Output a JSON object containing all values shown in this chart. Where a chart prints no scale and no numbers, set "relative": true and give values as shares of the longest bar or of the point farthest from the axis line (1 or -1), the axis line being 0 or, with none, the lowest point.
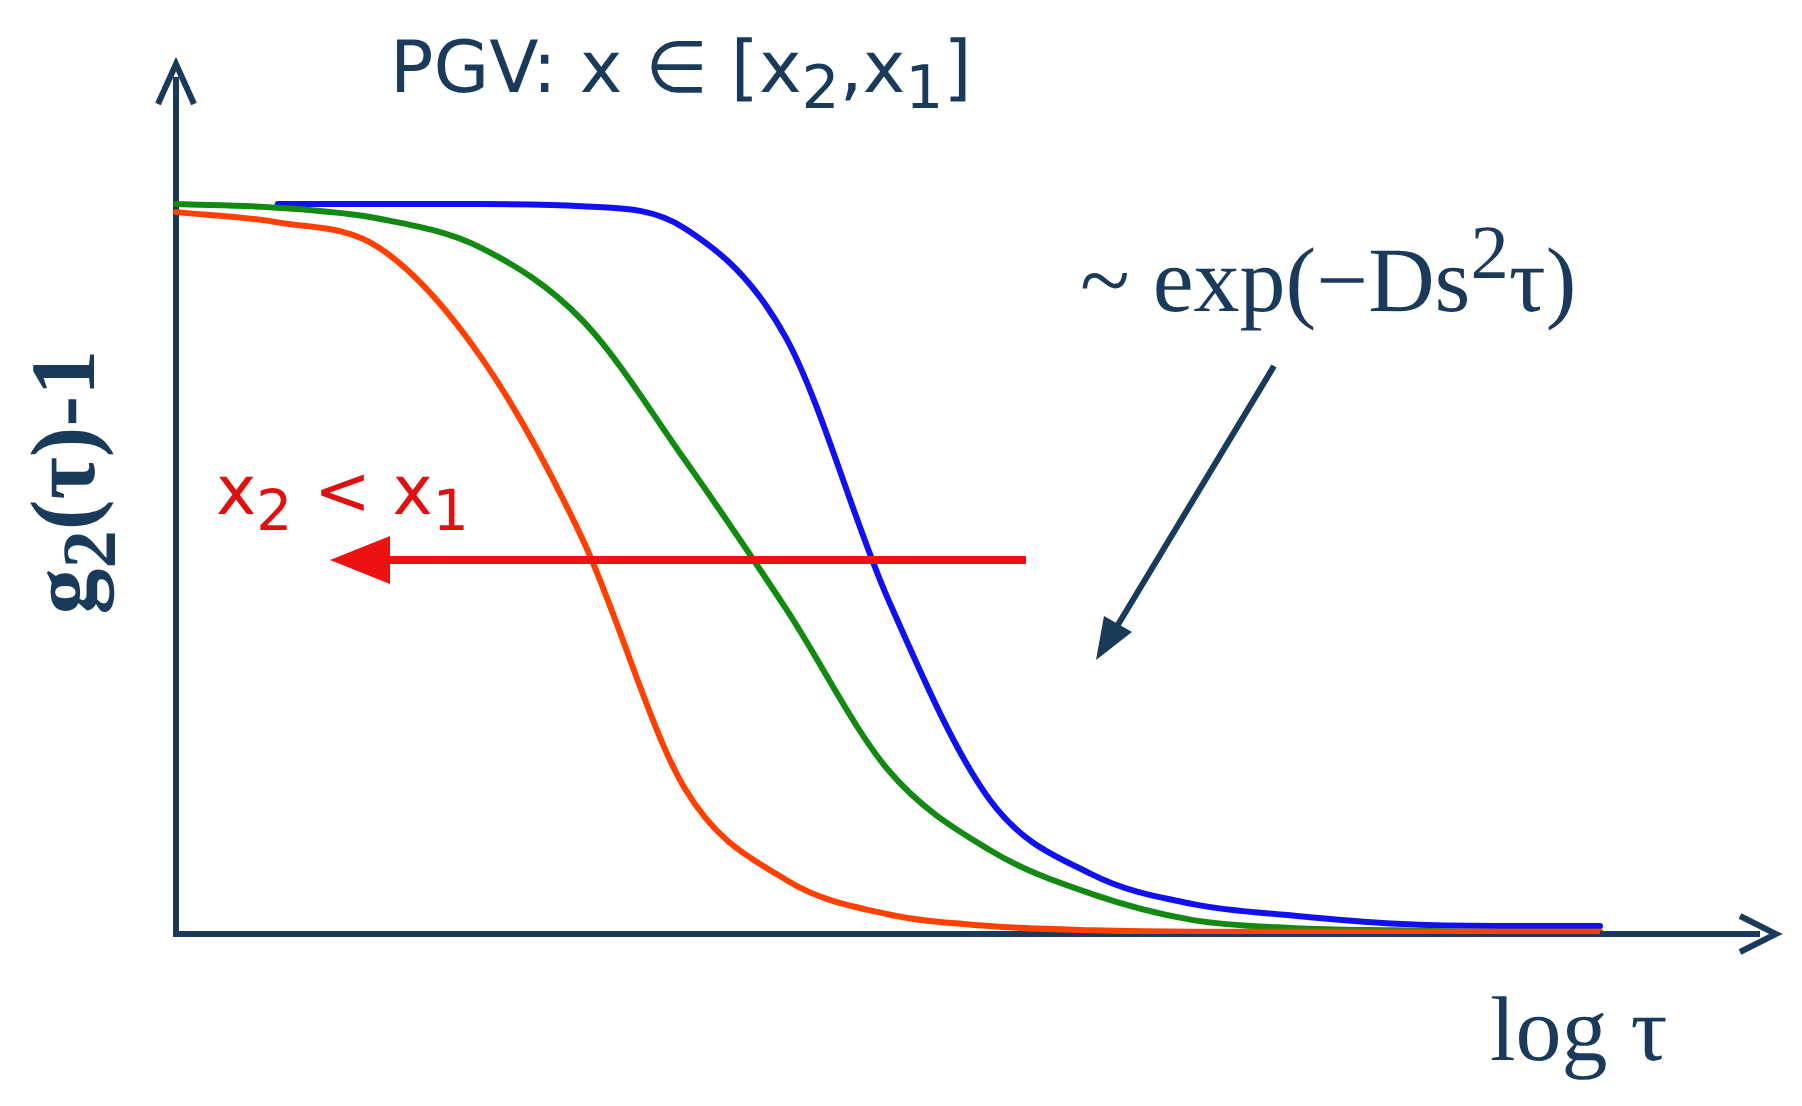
{
  "chart_data": {
    "type": "line",
    "title": "PGV: x ∈ [x$_{2}$,x$_{1}$]",
    "xlabel": "log τ",
    "ylabel": "g$_{2}$(τ)-1",
    "annotations": [
      "x$_{2}$ < x$_{1}$",
      "~ exp(−Ds$^{2}$τ)"
    ],
    "relative": true,
    "legend": false,
    "grid": false,
    "marker": "none",
    "line_style": "solid",
    "categories": [
      null,
      null,
      null,
      null,
      null,
      null,
      null,
      null,
      null,
      null,
      null,
      null,
      null,
      null,
      null
    ],
    "series": [
      {
        "color": "#ff4000",
        "values": [
          0.989,
          0.975,
          0.94,
          0.79,
          0.54,
          0.2,
          0.074,
          0.027,
          0.011,
          0.005,
          0.003,
          0.003,
          0.003,
          0.003,
          0.003
        ]
      },
      {
        "color": "#128a12",
        "values": [
          1.0,
          0.995,
          0.98,
          0.94,
          0.84,
          0.65,
          0.445,
          0.225,
          0.115,
          0.055,
          0.019,
          0.008,
          0.005,
          0.003,
          0.003
        ]
      },
      {
        "color": "#1010f0",
        "values": [
          null,
          1.0,
          1.0,
          1.0,
          0.997,
          0.967,
          0.816,
          0.459,
          0.184,
          0.082,
          0.041,
          0.025,
          0.014,
          0.011,
          0.011
        ]
      }
    ]
  }
}
